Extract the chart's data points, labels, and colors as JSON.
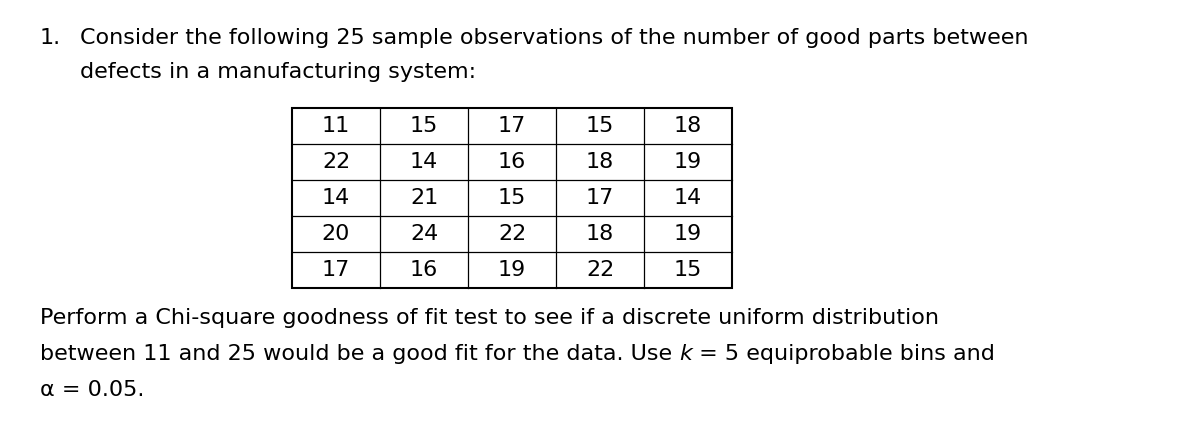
{
  "title_number": "1.",
  "para1_line1": "Consider the following 25 sample observations of the number of good parts between",
  "para1_line2": "defects in a manufacturing system:",
  "table_data": [
    [
      11,
      15,
      17,
      15,
      18
    ],
    [
      22,
      14,
      16,
      18,
      19
    ],
    [
      14,
      21,
      15,
      17,
      14
    ],
    [
      20,
      24,
      22,
      18,
      19
    ],
    [
      17,
      16,
      19,
      22,
      15
    ]
  ],
  "para2_line1": "Perform a Chi-square goodness of fit test to see if a discrete uniform distribution",
  "para2_line2_pre": "between 11 and 25 would be a good fit for the data. Use ",
  "para2_line2_k": "k",
  "para2_line2_post": " = 5 equiprobable bins and",
  "para2_line3": "α = 0.05.",
  "bg_color": "#ffffff",
  "text_color": "#000000",
  "font_size": 16,
  "font_size_table": 16,
  "font_name": "DejaVu Sans"
}
